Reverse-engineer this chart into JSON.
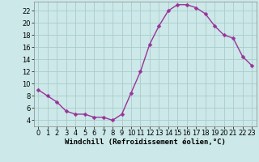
{
  "x": [
    0,
    1,
    2,
    3,
    4,
    5,
    6,
    7,
    8,
    9,
    10,
    11,
    12,
    13,
    14,
    15,
    16,
    17,
    18,
    19,
    20,
    21,
    22,
    23
  ],
  "y": [
    9,
    8,
    7,
    5.5,
    5,
    5,
    4.5,
    4.5,
    4,
    5,
    8.5,
    12,
    16.5,
    19.5,
    22,
    23,
    23,
    22.5,
    21.5,
    19.5,
    18,
    17.5,
    14.5,
    13
  ],
  "line_color": "#993399",
  "marker": "D",
  "markersize": 2.5,
  "linewidth": 1.0,
  "bg_color": "#cce8e8",
  "grid_color": "#aacccc",
  "xlabel": "Windchill (Refroidissement éolien,°C)",
  "xlabel_fontsize": 6.5,
  "tick_fontsize": 6,
  "xlim": [
    -0.5,
    23.5
  ],
  "ylim": [
    3,
    23.5
  ],
  "yticks": [
    4,
    6,
    8,
    10,
    12,
    14,
    16,
    18,
    20,
    22
  ],
  "xticks": [
    0,
    1,
    2,
    3,
    4,
    5,
    6,
    7,
    8,
    9,
    10,
    11,
    12,
    13,
    14,
    15,
    16,
    17,
    18,
    19,
    20,
    21,
    22,
    23
  ]
}
